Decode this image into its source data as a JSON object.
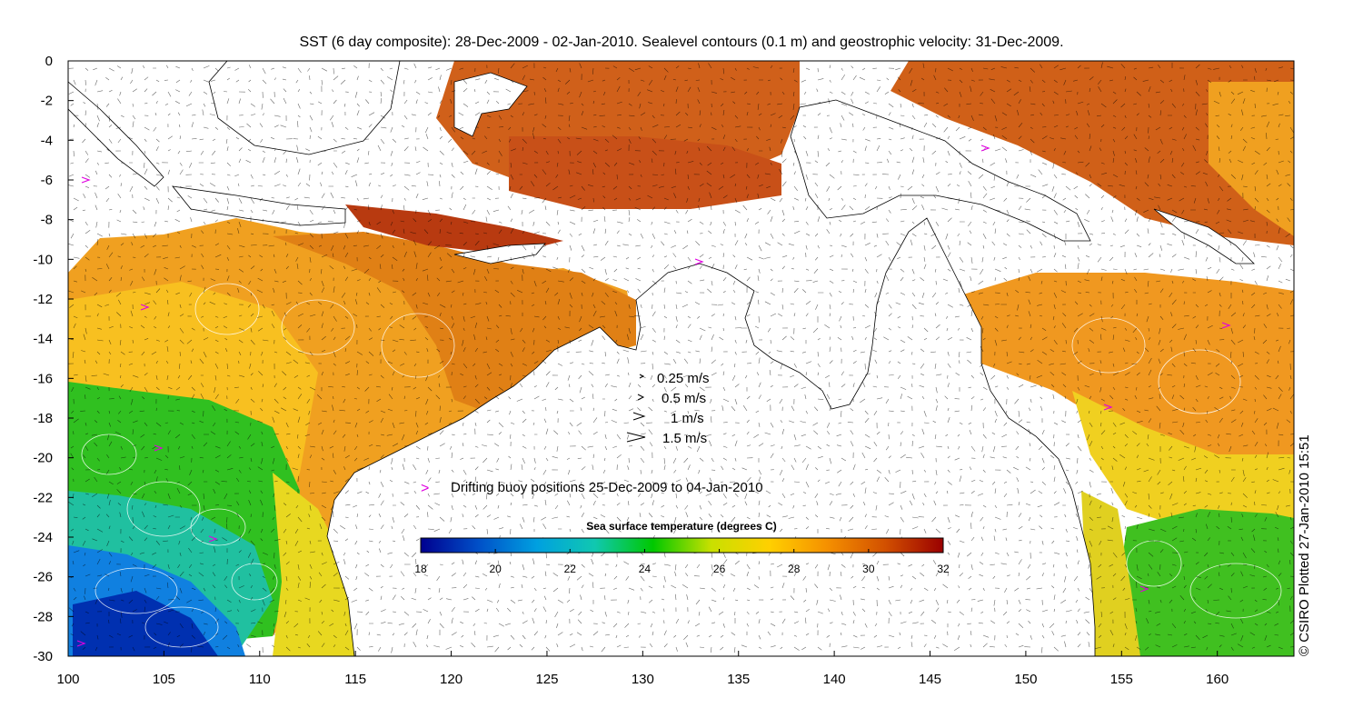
{
  "title": "SST (6 day composite): 28-Dec-2009 - 02-Jan-2010. Sealevel contours (0.1 m) and geostrophic velocity: 31-Dec-2009.",
  "x_ticks": [
    "100",
    "105",
    "110",
    "115",
    "120",
    "125",
    "130",
    "135",
    "140",
    "145",
    "150",
    "155",
    "160"
  ],
  "y_ticks": [
    "0",
    "-2",
    "-4",
    "-6",
    "-8",
    "-10",
    "-12",
    "-14",
    "-16",
    "-18",
    "-20",
    "-22",
    "-24",
    "-26",
    "-28",
    "-30"
  ],
  "x_range": [
    100,
    164
  ],
  "y_range": [
    -30,
    0
  ],
  "velocity_legend": [
    "0.25 m/s",
    "0.5 m/s",
    "1 m/s",
    "1.5 m/s"
  ],
  "buoy_legend": "Drifting buoy positions 25-Dec-2009 to 04-Jan-2010",
  "buoy_marker": ">",
  "colorbar": {
    "title": "Sea surface temperature (degrees C)",
    "ticks": [
      "18",
      "20",
      "22",
      "24",
      "26",
      "28",
      "30",
      "32"
    ],
    "range": [
      18,
      32
    ],
    "stops": [
      "#00008f",
      "#0050c8",
      "#00a0e0",
      "#10c8b0",
      "#00c800",
      "#c8e000",
      "#ffd000",
      "#f59000",
      "#d25000",
      "#9a0000"
    ]
  },
  "credit": "© CSIRO Plotted 27-Jan-2010 15:51",
  "colors": {
    "land": "#ffffff",
    "coast": "#000000",
    "contour": "#ffffff",
    "buoy": "#e000e0",
    "arrow": "#000000"
  }
}
